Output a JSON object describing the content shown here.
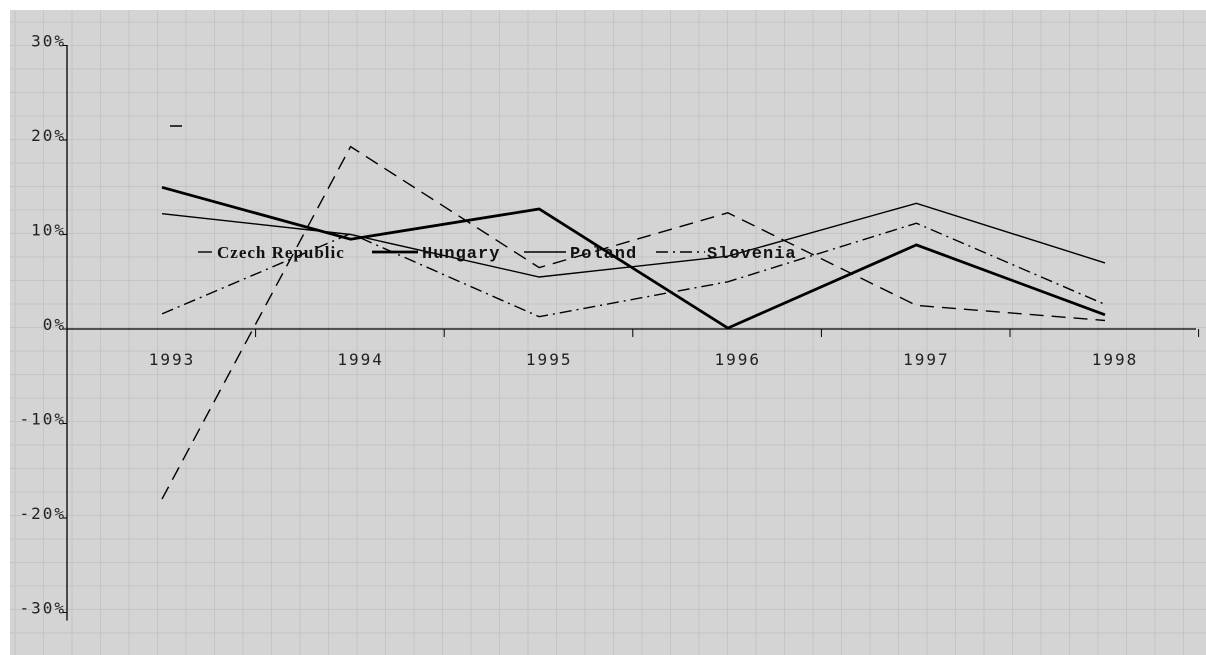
{
  "chart_data": {
    "type": "line",
    "title": "",
    "xlabel": "",
    "ylabel": "",
    "categories": [
      "1993",
      "1994",
      "1995",
      "1996",
      "1997",
      "1998"
    ],
    "y_ticks": [
      "-30%",
      "-20%",
      "-10%",
      "0%",
      "10%",
      "20%",
      "30%"
    ],
    "ylim": [
      -30,
      30
    ],
    "grid": true,
    "legend_position": "inside-middle-left",
    "series": [
      {
        "name": "Czech Republic",
        "style": "dashed",
        "values": [
          -18,
          19.3,
          6.5,
          12.3,
          2.5,
          0.9
        ]
      },
      {
        "name": "Hungary",
        "style": "thick-solid",
        "values": [
          15,
          9.5,
          12.7,
          0.1,
          8.9,
          1.5
        ]
      },
      {
        "name": "Poland",
        "style": "thin-solid",
        "values": [
          12.2,
          10,
          5.5,
          7.7,
          13.3,
          7
        ]
      },
      {
        "name": "Slovenia",
        "style": "dash-dot",
        "values": [
          1.6,
          10.1,
          1.3,
          5,
          11.2,
          2.6
        ]
      }
    ],
    "colors": {
      "background": "#d4d4d4",
      "grid": "#bfbfbf",
      "line": "#000000"
    }
  }
}
